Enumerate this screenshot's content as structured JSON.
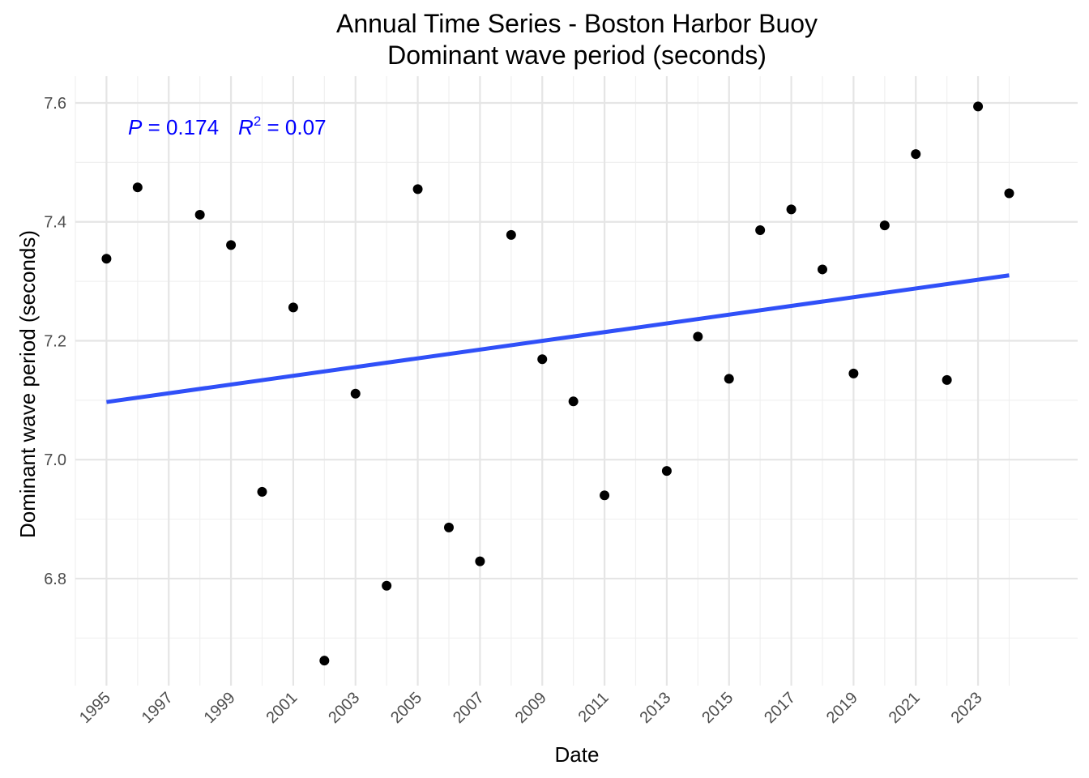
{
  "chart_data": {
    "type": "scatter",
    "title": "Annual Time Series - Boston Harbor Buoy",
    "subtitle": "Dominant wave period (seconds)",
    "xlabel": "Date",
    "ylabel": "Dominant wave period (seconds)",
    "x": [
      1995,
      1996,
      1998,
      1999,
      2000,
      2001,
      2002,
      2003,
      2004,
      2005,
      2006,
      2007,
      2008,
      2009,
      2010,
      2011,
      2013,
      2014,
      2015,
      2016,
      2017,
      2018,
      2019,
      2020,
      2021,
      2022,
      2023,
      2024
    ],
    "y": [
      7.338,
      7.458,
      7.412,
      7.361,
      6.946,
      7.256,
      6.662,
      7.111,
      6.788,
      7.455,
      6.886,
      6.829,
      7.378,
      7.169,
      7.098,
      6.94,
      6.981,
      7.207,
      7.136,
      7.386,
      7.421,
      7.32,
      7.145,
      7.394,
      7.514,
      7.134,
      7.594,
      7.448
    ],
    "trend": {
      "x": [
        1995,
        2024
      ],
      "y": [
        7.097,
        7.31
      ]
    },
    "xlim": [
      1994,
      2026.2
    ],
    "ylim": [
      6.62,
      7.645
    ],
    "x_ticks": [
      "1995",
      "1997",
      "1999",
      "2001",
      "2003",
      "2005",
      "2007",
      "2009",
      "2011",
      "2013",
      "2015",
      "2017",
      "2019",
      "2021",
      "2023"
    ],
    "y_ticks": [
      "6.8",
      "7.0",
      "7.2",
      "7.4",
      "7.6"
    ],
    "annotation": {
      "p_label": "P",
      "p_value": " = 0.174",
      "r_label": "R",
      "r_exp": "2",
      "r_value": " = 0.07"
    },
    "grid": true,
    "legend": "none",
    "colors": {
      "points": "#000000",
      "trend": "#3050f8",
      "annotation": "#0000ff"
    }
  }
}
